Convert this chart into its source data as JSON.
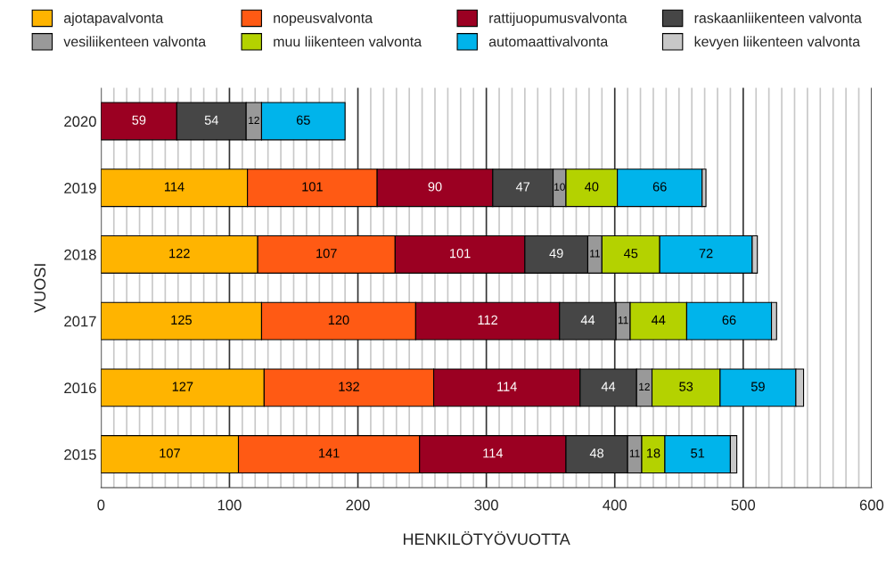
{
  "chart_data": {
    "type": "bar",
    "orientation": "horizontal",
    "stacked": true,
    "xlabel": "HENKILÖTYÖVUOTTA",
    "ylabel": "VUOSI",
    "categories": [
      "2020",
      "2019",
      "2018",
      "2017",
      "2016",
      "2015"
    ],
    "series": [
      {
        "name": "ajotapavalvonta",
        "color": "#ffb400",
        "values": [
          null,
          114,
          122,
          125,
          127,
          107
        ],
        "value_labels": [
          null,
          "114",
          "122",
          "125",
          "127",
          "107"
        ]
      },
      {
        "name": "nopeusvalvonta",
        "color": "#ff5a14",
        "values": [
          null,
          101,
          107,
          120,
          132,
          141
        ],
        "value_labels": [
          null,
          "101",
          "107",
          "120",
          "132",
          "141"
        ]
      },
      {
        "name": "rattijuopumusvalvonta",
        "color": "#9b0022",
        "values": [
          59,
          90,
          101,
          112,
          114,
          114
        ],
        "value_labels": [
          "59",
          "90",
          "101",
          "112",
          "114",
          "114"
        ]
      },
      {
        "name": "raskaanliikenteen valvonta",
        "color": "#464646",
        "values": [
          54,
          47,
          49,
          44,
          44,
          48
        ],
        "value_labels": [
          "54",
          "47",
          "49",
          "44",
          "44",
          "48"
        ]
      },
      {
        "name": "vesiliikenteen valvonta",
        "color": "#999999",
        "values": [
          12,
          10,
          11,
          11,
          12,
          11
        ],
        "value_labels": [
          "12",
          "10",
          "11",
          "11",
          "12",
          "11"
        ]
      },
      {
        "name": "muu liikenteen valvonta",
        "color": "#b4d200",
        "values": [
          null,
          40,
          45,
          44,
          53,
          18
        ],
        "value_labels": [
          null,
          "40",
          "45",
          "44",
          "53",
          "18"
        ]
      },
      {
        "name": "automaattivalvonta",
        "color": "#00b4eb",
        "values": [
          65,
          66,
          72,
          66,
          59,
          51
        ],
        "value_labels": [
          "65",
          "66",
          "72",
          "66",
          "59",
          "51"
        ]
      },
      {
        "name": "kevyen liikenteen valvonta",
        "color": "#c8c8c8",
        "values": [
          null,
          3,
          4,
          4,
          6,
          5
        ],
        "value_labels": [
          null,
          null,
          null,
          null,
          null,
          null
        ]
      }
    ],
    "xlim": [
      0,
      600
    ],
    "xticks": [
      0,
      {
        "value": 10,
        "label": null
      },
      {
        "value": 20,
        "label": null
      },
      {
        "value": 30,
        "label": null
      },
      {
        "value": 40,
        "label": null
      },
      {
        "value": 50,
        "label": null
      },
      {
        "value": 60,
        "label": null
      },
      {
        "value": 70,
        "label": null
      },
      {
        "value": 80,
        "label": null
      },
      {
        "value": 90,
        "label": null
      },
      100,
      {
        "value": 110,
        "label": null
      },
      {
        "value": 120,
        "label": null
      },
      {
        "value": 130,
        "label": null
      },
      {
        "value": 140,
        "label": null
      },
      {
        "value": 150,
        "label": null
      },
      {
        "value": 160,
        "label": null
      },
      {
        "value": 170,
        "label": null
      },
      {
        "value": 180,
        "label": null
      },
      {
        "value": 190,
        "label": null
      },
      200,
      {
        "value": 210,
        "label": null
      },
      {
        "value": 220,
        "label": null
      },
      {
        "value": 230,
        "label": null
      },
      {
        "value": 240,
        "label": null
      },
      {
        "value": 250,
        "label": null
      },
      {
        "value": 260,
        "label": null
      },
      {
        "value": 270,
        "label": null
      },
      {
        "value": 280,
        "label": null
      },
      {
        "value": 290,
        "label": null
      },
      300,
      {
        "value": 310,
        "label": null
      },
      {
        "value": 320,
        "label": null
      },
      {
        "value": 330,
        "label": null
      },
      {
        "value": 340,
        "label": null
      },
      {
        "value": 350,
        "label": null
      },
      {
        "value": 360,
        "label": null
      },
      {
        "value": 370,
        "label": null
      },
      {
        "value": 380,
        "label": null
      },
      {
        "value": 390,
        "label": null
      },
      400,
      {
        "value": 410,
        "label": null
      },
      {
        "value": 420,
        "label": null
      },
      {
        "value": 430,
        "label": null
      },
      {
        "value": 440,
        "label": null
      },
      {
        "value": 450,
        "label": null
      },
      {
        "value": 460,
        "label": null
      },
      {
        "value": 470,
        "label": null
      },
      {
        "value": 480,
        "label": null
      },
      {
        "value": 490,
        "label": null
      },
      500,
      {
        "value": 510,
        "label": null
      },
      {
        "value": 520,
        "label": null
      },
      {
        "value": 530,
        "label": null
      },
      {
        "value": 540,
        "label": null
      },
      {
        "value": 550,
        "label": null
      },
      {
        "value": 560,
        "label": null
      },
      {
        "value": 570,
        "label": null
      },
      {
        "value": 580,
        "label": null
      },
      {
        "value": 590,
        "label": null
      },
      600
    ],
    "grid": "x",
    "legend": "top"
  }
}
